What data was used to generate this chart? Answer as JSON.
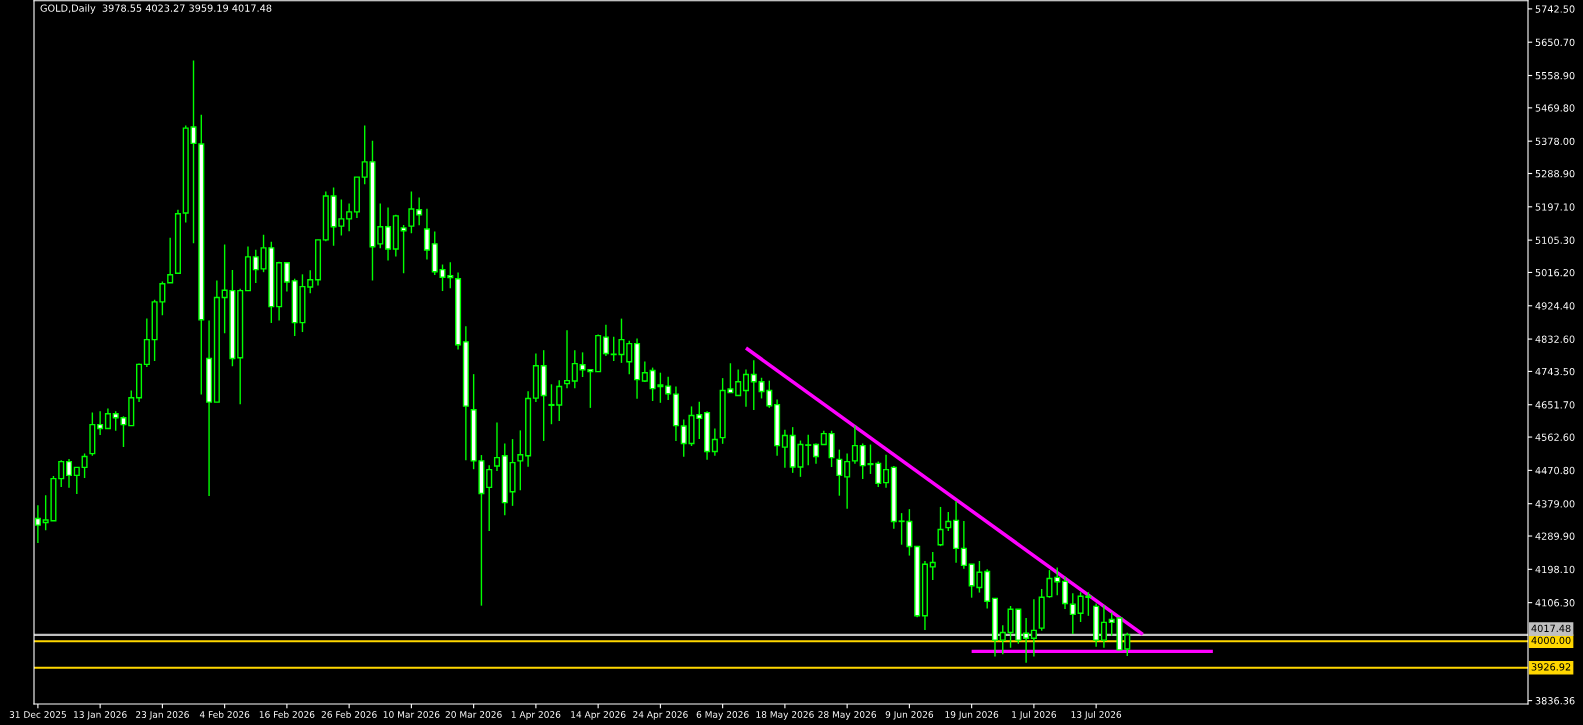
{
  "chart_data": {
    "type": "candlestick",
    "title": "GOLD,Daily  3978.55 4023.27 3959.19 4017.48",
    "categories": [
      "31 Dec 2025",
      null,
      null,
      null,
      null,
      null,
      null,
      null,
      "13 Jan 2026",
      null,
      null,
      null,
      null,
      null,
      null,
      null,
      "23 Jan 2026",
      null,
      null,
      null,
      null,
      null,
      null,
      null,
      "4 Feb 2026",
      null,
      null,
      null,
      null,
      null,
      null,
      null,
      "16 Feb 2026",
      null,
      null,
      null,
      null,
      null,
      null,
      null,
      "26 Feb 2026",
      null,
      null,
      null,
      null,
      null,
      null,
      null,
      "10 Mar 2026",
      null,
      null,
      null,
      null,
      null,
      null,
      null,
      "20 Mar 2026",
      null,
      null,
      null,
      null,
      null,
      null,
      null,
      "1 Apr 2026",
      null,
      null,
      null,
      null,
      null,
      null,
      null,
      "14 Apr 2026",
      null,
      null,
      null,
      null,
      null,
      null,
      null,
      "24 Apr 2026",
      null,
      null,
      null,
      null,
      null,
      null,
      null,
      "6 May 2026",
      null,
      null,
      null,
      null,
      null,
      null,
      null,
      "18 May 2026",
      null,
      null,
      null,
      null,
      null,
      null,
      null,
      "28 May 2026",
      null,
      null,
      null,
      null,
      null,
      null,
      null,
      "9 Jun 2026",
      null,
      null,
      null,
      null,
      null,
      null,
      null,
      "19 Jun 2026",
      null,
      null,
      null,
      null,
      null,
      null,
      null,
      "1 Jul 2026",
      null,
      null,
      null,
      null,
      null,
      null,
      null,
      "13 Jul 2026",
      null,
      null,
      null,
      null,
      null,
      null,
      null,
      null,
      null,
      null,
      null,
      null,
      null,
      null,
      null,
      null,
      null,
      null,
      null,
      null,
      null,
      null,
      null,
      null,
      null,
      null,
      null,
      null,
      null,
      null,
      null,
      null,
      null,
      null,
      null,
      null,
      null,
      null,
      null,
      null,
      null,
      null,
      null,
      null,
      null,
      null,
      null,
      null,
      null,
      null,
      null,
      null,
      null,
      null,
      null
    ],
    "ohlc": [
      [
        4338,
        4375,
        4271,
        4320
      ],
      [
        4327,
        4402,
        4306,
        4334
      ],
      [
        4332,
        4455,
        4332,
        4448
      ],
      [
        4448,
        4499,
        4425,
        4495
      ],
      [
        4495,
        4502,
        4423,
        4457
      ],
      [
        4457,
        4479,
        4406,
        4479
      ],
      [
        4479,
        4517,
        4450,
        4509
      ],
      [
        4517,
        4630,
        4511,
        4597
      ],
      [
        4597,
        4634,
        4568,
        4586
      ],
      [
        4586,
        4641,
        4586,
        4627
      ],
      [
        4627,
        4634,
        4580,
        4616
      ],
      [
        4616,
        4620,
        4535,
        4597
      ],
      [
        4594,
        4691,
        4594,
        4671
      ],
      [
        4671,
        4765,
        4659,
        4763
      ],
      [
        4763,
        4889,
        4756,
        4831
      ],
      [
        4831,
        4941,
        4772,
        4935
      ],
      [
        4935,
        4991,
        4898,
        4985
      ],
      [
        4988,
        5112,
        4988,
        5010
      ],
      [
        5014,
        5189,
        5012,
        5178
      ],
      [
        5180,
        5421,
        5154,
        5414
      ],
      [
        5417,
        5600,
        5097,
        5372
      ],
      [
        5370,
        5451,
        4680,
        4886
      ],
      [
        4779,
        4884,
        4400,
        4659
      ],
      [
        4659,
        4994,
        4659,
        4947
      ],
      [
        4947,
        5093,
        4849,
        4967
      ],
      [
        4966,
        5023,
        4758,
        4779
      ],
      [
        4781,
        4971,
        4653,
        4966
      ],
      [
        4966,
        5088,
        4966,
        5059
      ],
      [
        5059,
        5079,
        4987,
        5024
      ],
      [
        5026,
        5120,
        5017,
        5084
      ],
      [
        5084,
        5101,
        4877,
        4922
      ],
      [
        4922,
        5046,
        4884,
        5043
      ],
      [
        5043,
        5043,
        4964,
        4990
      ],
      [
        4993,
        4999,
        4841,
        4878
      ],
      [
        4878,
        5011,
        4852,
        4977
      ],
      [
        4976,
        5022,
        4959,
        4996
      ],
      [
        4996,
        5106,
        4980,
        5106
      ],
      [
        5106,
        5239,
        5102,
        5227
      ],
      [
        5227,
        5250,
        5090,
        5142
      ],
      [
        5144,
        5217,
        5118,
        5164
      ],
      [
        5164,
        5206,
        5130,
        5183
      ],
      [
        5183,
        5279,
        5166,
        5279
      ],
      [
        5279,
        5421,
        5259,
        5321
      ],
      [
        5321,
        5379,
        4994,
        5087
      ],
      [
        5095,
        5206,
        5083,
        5142
      ],
      [
        5142,
        5195,
        5049,
        5081
      ],
      [
        5081,
        5175,
        5060,
        5172
      ],
      [
        5139,
        5147,
        5014,
        5131
      ],
      [
        5144,
        5239,
        5124,
        5191
      ],
      [
        5189,
        5223,
        5146,
        5175
      ],
      [
        5136,
        5192,
        5052,
        5078
      ],
      [
        5095,
        5129,
        5009,
        5018
      ],
      [
        5024,
        5038,
        4965,
        5003
      ],
      [
        5007,
        5044,
        4973,
        5002
      ],
      [
        4999,
        5016,
        4804,
        4817
      ],
      [
        4825,
        4868,
        4499,
        4648
      ],
      [
        4638,
        4736,
        4474,
        4497
      ],
      [
        4497,
        4513,
        4098,
        4407
      ],
      [
        4424,
        4485,
        4304,
        4473
      ],
      [
        4483,
        4603,
        4469,
        4506
      ],
      [
        4511,
        4545,
        4347,
        4382
      ],
      [
        4412,
        4557,
        4373,
        4492
      ],
      [
        4497,
        4581,
        4416,
        4514
      ],
      [
        4511,
        4689,
        4481,
        4669
      ],
      [
        4670,
        4793,
        4659,
        4759
      ],
      [
        4759,
        4802,
        4552,
        4677
      ],
      [
        4650,
        4708,
        4598,
        4652
      ],
      [
        4651,
        4719,
        4607,
        4702
      ],
      [
        4710,
        4857,
        4697,
        4718
      ],
      [
        4717,
        4802,
        4697,
        4765
      ],
      [
        4762,
        4796,
        4728,
        4748
      ],
      [
        4748,
        4748,
        4643,
        4743
      ],
      [
        4743,
        4845,
        4743,
        4842
      ],
      [
        4838,
        4872,
        4786,
        4793
      ],
      [
        4790,
        4839,
        4772,
        4791
      ],
      [
        4790,
        4889,
        4767,
        4831
      ],
      [
        4770,
        4828,
        4736,
        4820
      ],
      [
        4820,
        4834,
        4668,
        4721
      ],
      [
        4717,
        4771,
        4714,
        4740
      ],
      [
        4746,
        4754,
        4662,
        4696
      ],
      [
        4706,
        4740,
        4657,
        4702
      ],
      [
        4703,
        4729,
        4665,
        4682
      ],
      [
        4681,
        4702,
        4552,
        4594
      ],
      [
        4593,
        4611,
        4508,
        4545
      ],
      [
        4545,
        4647,
        4538,
        4622
      ],
      [
        4624,
        4660,
        4557,
        4614
      ],
      [
        4630,
        4634,
        4500,
        4523
      ],
      [
        4523,
        4586,
        4511,
        4556
      ],
      [
        4561,
        4725,
        4544,
        4691
      ],
      [
        4695,
        4766,
        4685,
        4685
      ],
      [
        4677,
        4749,
        4677,
        4715
      ],
      [
        4691,
        4749,
        4646,
        4735
      ],
      [
        4735,
        4774,
        4637,
        4715
      ],
      [
        4715,
        4726,
        4669,
        4688
      ],
      [
        4691,
        4718,
        4643,
        4649
      ],
      [
        4652,
        4666,
        4511,
        4539
      ],
      [
        4535,
        4583,
        4478,
        4567
      ],
      [
        4567,
        4590,
        4464,
        4480
      ],
      [
        4480,
        4553,
        4453,
        4542
      ],
      [
        4540,
        4569,
        4485,
        4541
      ],
      [
        4542,
        4545,
        4489,
        4509
      ],
      [
        4542,
        4580,
        4542,
        4572
      ],
      [
        4572,
        4580,
        4480,
        4506
      ],
      [
        4501,
        4528,
        4401,
        4457
      ],
      [
        4453,
        4517,
        4365,
        4495
      ],
      [
        4497,
        4594,
        4489,
        4539
      ],
      [
        4539,
        4545,
        4447,
        4484
      ],
      [
        4489,
        4542,
        4461,
        4487
      ],
      [
        4490,
        4495,
        4425,
        4435
      ],
      [
        4437,
        4514,
        4423,
        4473
      ],
      [
        4479,
        4483,
        4310,
        4330
      ],
      [
        4331,
        4353,
        4266,
        4330
      ],
      [
        4330,
        4364,
        4236,
        4261
      ],
      [
        4261,
        4261,
        4066,
        4070
      ],
      [
        4070,
        4221,
        4031,
        4212
      ],
      [
        4205,
        4246,
        4169,
        4217
      ],
      [
        4266,
        4370,
        4262,
        4308
      ],
      [
        4313,
        4356,
        4304,
        4330
      ],
      [
        4333,
        4386,
        4216,
        4256
      ],
      [
        4256,
        4331,
        4200,
        4209
      ],
      [
        4212,
        4212,
        4120,
        4153
      ],
      [
        4148,
        4221,
        4134,
        4190
      ],
      [
        4192,
        4198,
        4090,
        4110
      ],
      [
        4118,
        4118,
        3958,
        4003
      ],
      [
        4003,
        4044,
        3964,
        4024
      ],
      [
        4024,
        4097,
        3982,
        4088
      ],
      [
        4088,
        4088,
        3993,
        4003
      ],
      [
        4022,
        4064,
        3941,
        4008
      ],
      [
        4008,
        4116,
        3958,
        4030
      ],
      [
        4036,
        4144,
        4029,
        4121
      ],
      [
        4123,
        4196,
        4120,
        4173
      ],
      [
        4176,
        4203,
        4127,
        4164
      ],
      [
        4165,
        4178,
        4089,
        4104
      ],
      [
        4102,
        4132,
        4020,
        4074
      ],
      [
        4077,
        4135,
        4053,
        4124
      ],
      [
        4121,
        4135,
        4070,
        4124
      ],
      [
        4096,
        4104,
        3985,
        4003
      ],
      [
        4003,
        4099,
        3982,
        4052
      ],
      [
        4060,
        4079,
        4015,
        4052
      ],
      [
        4064,
        4064,
        3976,
        3976
      ],
      [
        3978.55,
        4023.27,
        3959.19,
        4017.48
      ],
      null,
      null,
      null,
      null,
      null,
      null,
      null,
      null,
      null,
      null,
      null,
      null,
      null,
      null,
      null,
      null,
      null,
      null,
      null,
      null,
      null,
      null,
      null,
      null,
      null,
      null,
      null,
      null,
      null,
      null,
      null,
      null,
      null,
      null,
      null,
      null,
      null,
      null,
      null,
      null,
      null,
      null,
      null,
      null,
      null,
      null,
      null,
      null,
      null,
      null,
      null
    ],
    "series": [
      {
        "type": "line",
        "color": "#ff00ff",
        "values": [
          null,
          null,
          null,
          null,
          null,
          null,
          null,
          null,
          null,
          null,
          null,
          null,
          null,
          null,
          null,
          null,
          null,
          null,
          null,
          null,
          null,
          null,
          null,
          null,
          null,
          null,
          null,
          null,
          null,
          null,
          null,
          null,
          null,
          null,
          null,
          null,
          null,
          null,
          null,
          null,
          null,
          null,
          null,
          null,
          null,
          null,
          null,
          null,
          null,
          null,
          null,
          null,
          null,
          null,
          null,
          null,
          null,
          null,
          null,
          null,
          null,
          null,
          null,
          null,
          null,
          null,
          null,
          null,
          null,
          null,
          null,
          null,
          null,
          null,
          null,
          null,
          null,
          null,
          null,
          null,
          null,
          null,
          null,
          null,
          null,
          null,
          null,
          null,
          null,
          null,
          null,
          4808,
          null,
          null,
          null,
          null,
          null,
          null,
          null,
          null,
          null,
          null,
          null,
          null,
          null,
          null,
          null,
          null,
          null,
          null,
          null,
          null,
          null,
          null,
          null,
          null,
          null,
          null,
          null,
          null,
          null,
          null,
          null,
          null,
          null,
          null,
          null,
          null,
          null,
          null,
          null,
          null,
          null,
          null,
          null,
          null,
          null,
          null,
          null,
          null,
          null,
          null,
          4019,
          null,
          null,
          null,
          null,
          null,
          null,
          null,
          null,
          null,
          null,
          null,
          null,
          null,
          null,
          null,
          null,
          null,
          null,
          null,
          null,
          null,
          null,
          null,
          null,
          null,
          null,
          null,
          null,
          null,
          null,
          null,
          null,
          null,
          null,
          null,
          null,
          null,
          null,
          null,
          null,
          null,
          null,
          null,
          null,
          null,
          null,
          null,
          null,
          null
        ]
      },
      {
        "type": "line",
        "color": "#ff00ff",
        "values": [
          null,
          null,
          null,
          null,
          null,
          null,
          null,
          null,
          null,
          null,
          null,
          null,
          null,
          null,
          null,
          null,
          null,
          null,
          null,
          null,
          null,
          null,
          null,
          null,
          null,
          null,
          null,
          null,
          null,
          null,
          null,
          null,
          null,
          null,
          null,
          null,
          null,
          null,
          null,
          null,
          null,
          null,
          null,
          null,
          null,
          null,
          null,
          null,
          null,
          null,
          null,
          null,
          null,
          null,
          null,
          null,
          null,
          null,
          null,
          null,
          null,
          null,
          null,
          null,
          null,
          null,
          null,
          null,
          null,
          null,
          null,
          null,
          null,
          null,
          null,
          null,
          null,
          null,
          null,
          null,
          null,
          null,
          null,
          null,
          null,
          null,
          null,
          null,
          null,
          null,
          null,
          null,
          null,
          null,
          null,
          null,
          null,
          null,
          null,
          null,
          null,
          null,
          null,
          null,
          null,
          null,
          null,
          null,
          null,
          null,
          null,
          null,
          null,
          null,
          null,
          null,
          null,
          null,
          null,
          null,
          3972,
          null,
          null,
          null,
          null,
          null,
          null,
          null,
          null,
          null,
          null,
          null,
          null,
          null,
          null,
          null,
          null,
          null,
          null,
          null,
          null,
          null,
          null,
          null,
          null,
          null,
          null,
          null,
          null,
          null,
          null,
          3972,
          null,
          null,
          null,
          null,
          null,
          null,
          null,
          null,
          null,
          null,
          null,
          null,
          null,
          null,
          null,
          null,
          null,
          null,
          null,
          null,
          null,
          null,
          null,
          null,
          null,
          null,
          null,
          null,
          null,
          null,
          null,
          null,
          null,
          null,
          null,
          null,
          null,
          null,
          null,
          null
        ]
      }
    ],
    "ylim": [
      3827,
      5765
    ],
    "yticks": [
      {
        "value": 5742.5,
        "label": "5742.50"
      },
      {
        "value": 5650.7,
        "label": "5650.70"
      },
      {
        "value": 5558.9,
        "label": "5558.90"
      },
      {
        "value": 5469.8,
        "label": "5469.80"
      },
      {
        "value": 5378.0,
        "label": "5378.00"
      },
      {
        "value": 5288.9,
        "label": "5288.90"
      },
      {
        "value": 5197.1,
        "label": "5197.10"
      },
      {
        "value": 5105.3,
        "label": "5105.30"
      },
      {
        "value": 5016.2,
        "label": "5016.20"
      },
      {
        "value": 4924.4,
        "label": "4924.40"
      },
      {
        "value": 4832.6,
        "label": "4832.60"
      },
      {
        "value": 4743.5,
        "label": "4743.50"
      },
      {
        "value": 4651.7,
        "label": "4651.70"
      },
      {
        "value": 4562.6,
        "label": "4562.60"
      },
      {
        "value": 4470.8,
        "label": "4470.80"
      },
      {
        "value": 4379.0,
        "label": "4379.00"
      },
      {
        "value": 4289.9,
        "label": "4289.90"
      },
      {
        "value": 4198.1,
        "label": "4198.10"
      },
      {
        "value": 4106.3,
        "label": "4106.30"
      },
      {
        "value": 3836.36,
        "label": "3836.36"
      }
    ],
    "ref_lines": [
      {
        "axis": "y",
        "value": 4017.48,
        "label": "4017.48",
        "color": "#c0c0c0"
      },
      {
        "axis": "y",
        "value": 4000,
        "label": "4000.00",
        "color": "#ffd700"
      },
      {
        "axis": "y",
        "value": 3926.92,
        "label": "3926.92",
        "color": "#ffd700"
      }
    ],
    "grid": false
  }
}
